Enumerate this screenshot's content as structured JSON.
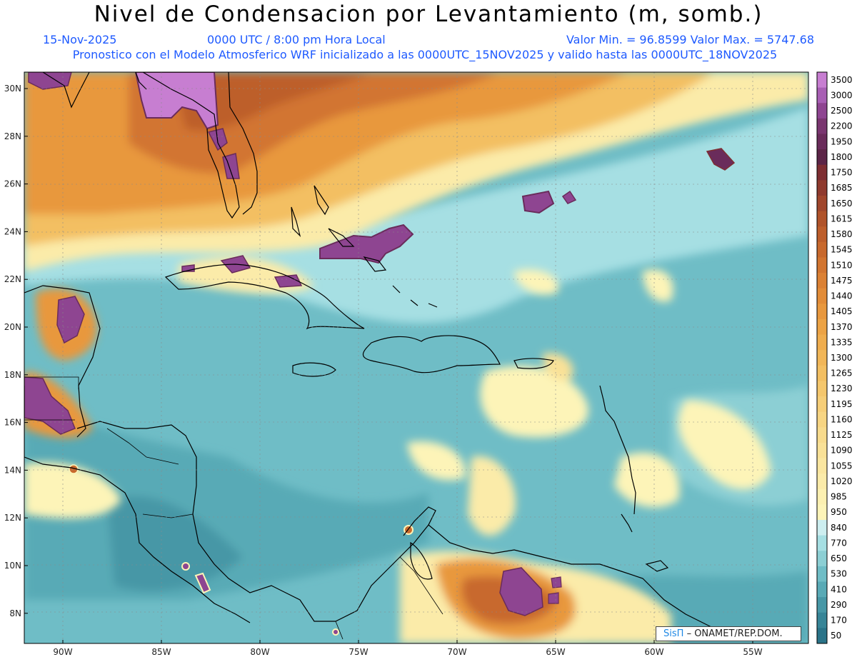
{
  "header": {
    "title": "Nivel de Condensacion por Levantamiento (m, somb.)",
    "date": "15-Nov-2025",
    "time": "0000 UTC / 8:00 pm Hora Local",
    "range": "Valor Min. = 96.8599   Valor Max. = 5747.68",
    "model": "Pronostico con el Modelo Atmosferico WRF inicializado a las 0000UTC_15NOV2025 y valido hasta las  0000UTC_18NOV2025"
  },
  "map": {
    "lon_labels": [
      "90W",
      "85W",
      "80W",
      "75W",
      "70W",
      "65W",
      "60W",
      "55W"
    ],
    "lat_labels": [
      "30N",
      "28N",
      "26N",
      "24N",
      "22N",
      "20N",
      "18N",
      "16N",
      "14N",
      "12N",
      "10N",
      "8N"
    ],
    "background_color": "#6fbdc6",
    "land_color": "#8ccfd4"
  },
  "colorbar": {
    "levels": [
      {
        "label": "3500",
        "color": "#c77ed1"
      },
      {
        "label": "3000",
        "color": "#a85fb4"
      },
      {
        "label": "2500",
        "color": "#8e4591"
      },
      {
        "label": "2200",
        "color": "#7a3670"
      },
      {
        "label": "1950",
        "color": "#6a2c5b"
      },
      {
        "label": "1800",
        "color": "#5c2547"
      },
      {
        "label": "1750",
        "color": "#7e2e32"
      },
      {
        "label": "1685",
        "color": "#8f3a2e"
      },
      {
        "label": "1650",
        "color": "#a0462c"
      },
      {
        "label": "1615",
        "color": "#b0532a"
      },
      {
        "label": "1580",
        "color": "#bd5e2b"
      },
      {
        "label": "1545",
        "color": "#c8692d"
      },
      {
        "label": "1510",
        "color": "#d27530"
      },
      {
        "label": "1475",
        "color": "#db8134"
      },
      {
        "label": "1440",
        "color": "#e28c38"
      },
      {
        "label": "1405",
        "color": "#e8983e"
      },
      {
        "label": "1370",
        "color": "#eca345"
      },
      {
        "label": "1335",
        "color": "#efad4e"
      },
      {
        "label": "1300",
        "color": "#f1b658"
      },
      {
        "label": "1265",
        "color": "#f3bf62"
      },
      {
        "label": "1230",
        "color": "#f5c76d"
      },
      {
        "label": "1195",
        "color": "#f6ce78"
      },
      {
        "label": "1160",
        "color": "#f7d583"
      },
      {
        "label": "1125",
        "color": "#f8db8d"
      },
      {
        "label": "1090",
        "color": "#f9e197"
      },
      {
        "label": "1055",
        "color": "#fae6a0"
      },
      {
        "label": "1020",
        "color": "#fbeba9"
      },
      {
        "label": "985",
        "color": "#fcf0b1"
      },
      {
        "label": "950",
        "color": "#fdf4b8"
      },
      {
        "label": "840",
        "color": "#cdeef0"
      },
      {
        "label": "770",
        "color": "#a6dfe3"
      },
      {
        "label": "650",
        "color": "#8ccfd4"
      },
      {
        "label": "530",
        "color": "#6fbdc6"
      },
      {
        "label": "410",
        "color": "#59aab6"
      },
      {
        "label": "290",
        "color": "#4797a6"
      },
      {
        "label": "170",
        "color": "#378597"
      },
      {
        "label": "50",
        "color": "#2a7388"
      }
    ]
  },
  "credit": {
    "brand": "SisΠ",
    "text": "– ONAMET/REP.DOM."
  }
}
